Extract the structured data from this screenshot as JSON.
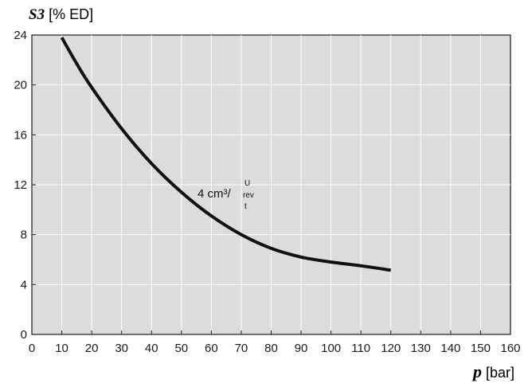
{
  "chart_data": {
    "type": "line",
    "ylabel_symbol": "S3",
    "ylabel_unit": "[% ED]",
    "xlabel_symbol": "p",
    "xlabel_unit": "[bar]",
    "xlim": [
      0,
      160
    ],
    "ylim": [
      0,
      24
    ],
    "x_ticks": [
      "0",
      "10",
      "20",
      "30",
      "40",
      "50",
      "60",
      "70",
      "80",
      "90",
      "100",
      "110",
      "120",
      "130",
      "140",
      "150",
      "160"
    ],
    "y_ticks": [
      "0",
      "4",
      "8",
      "12",
      "16",
      "20",
      "24"
    ],
    "grid": true,
    "series": [
      {
        "label_main": "4 cm³/",
        "label_top": "U",
        "label_mid": "rev",
        "label_bot": "t",
        "color": "#111111",
        "x": [
          10,
          15,
          20,
          30,
          40,
          50,
          60,
          70,
          80,
          90,
          100,
          110,
          120
        ],
        "y": [
          23.8,
          21.7,
          19.8,
          16.5,
          13.7,
          11.4,
          9.5,
          8.0,
          6.9,
          6.2,
          5.8,
          5.5,
          5.15
        ]
      }
    ],
    "colors": {
      "plot_bg": "#dcdcdc",
      "grid": "#ffffff",
      "axis": "#1a1a1a",
      "line": "#111111"
    }
  }
}
